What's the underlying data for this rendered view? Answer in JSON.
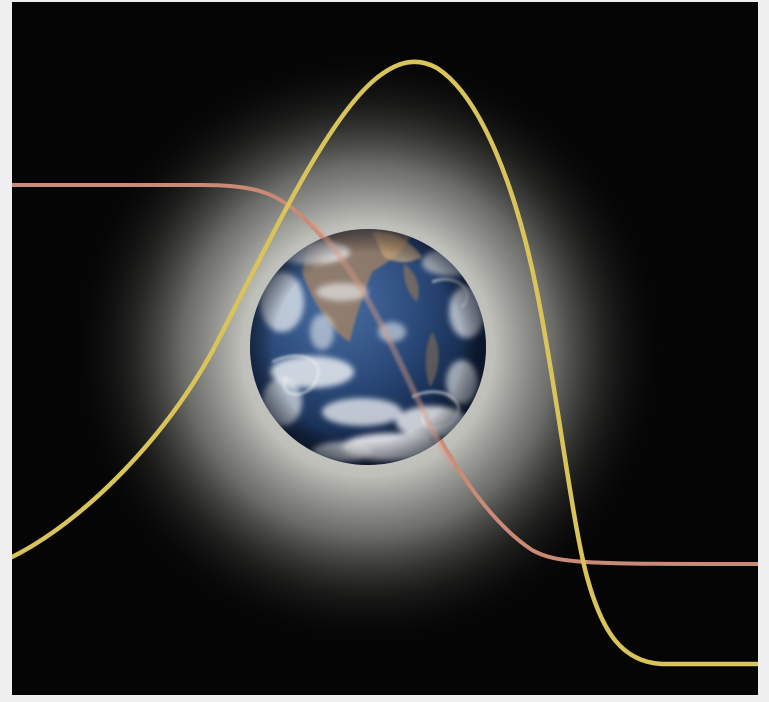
{
  "image": {
    "subject": "earth-in-space-with-crossing-curves",
    "colors": {
      "frame": "#efefef",
      "space": "#050505",
      "halo": "#d8d8d4",
      "gold_curve": "#d8c45a",
      "salmon_curve": "#c98a76",
      "ocean_deep": "#14284a",
      "ocean_mid": "#2e4f80",
      "cloud": "#f4f6f8",
      "land": "#b58e62"
    }
  }
}
